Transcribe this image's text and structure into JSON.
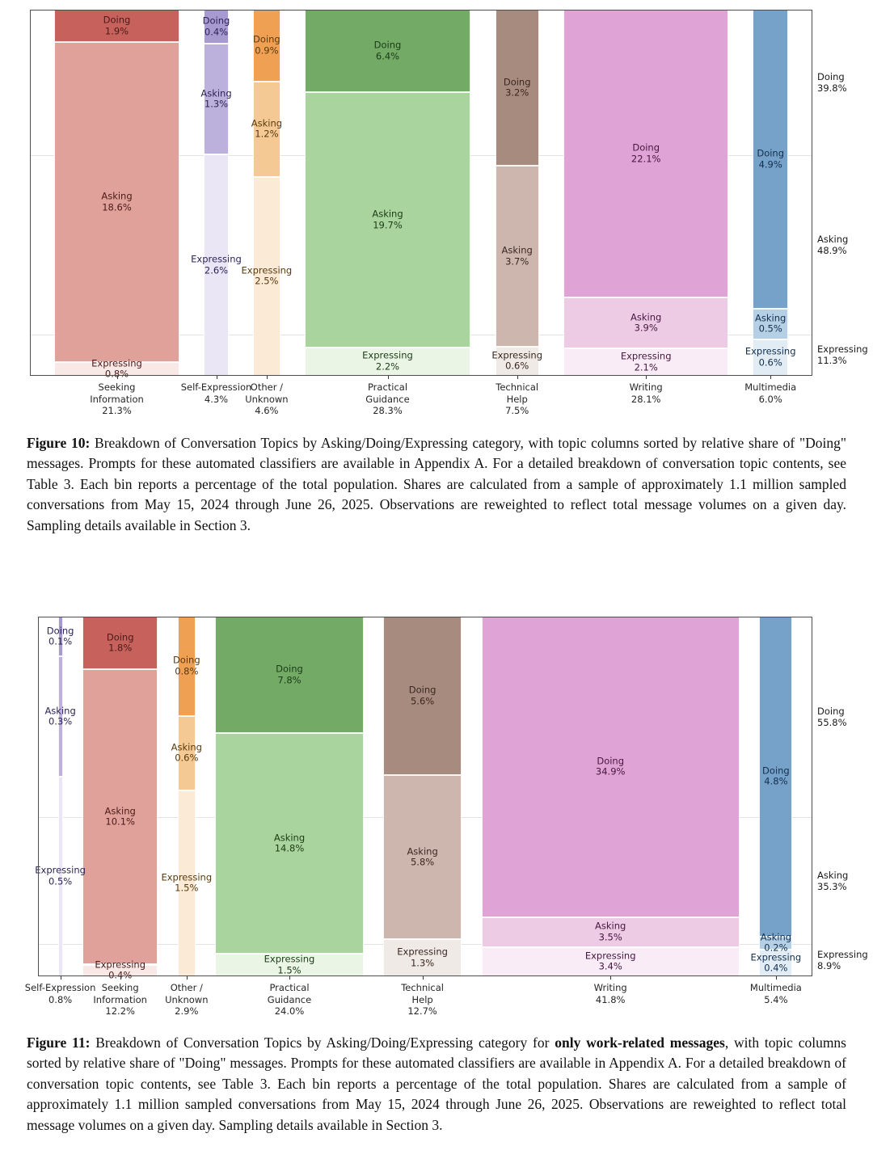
{
  "style": {
    "frame_color": "#4d4d4d",
    "grid_color": "#e3e3e3",
    "axis_text_color": "#262626",
    "right_label_color": "#1a1a1a",
    "background": "#ffffff"
  },
  "chart_data": [
    {
      "type": "mosaic",
      "title": "",
      "figure_label": "Figure 10:",
      "caption_parts": [
        {
          "bold": false,
          "text": " Breakdown of Conversation Topics by Asking/Doing/Expressing category, with topic columns sorted by relative share of \"Doing\" messages. Prompts for these automated classifiers are available in Appendix A. For a detailed breakdown of conversation topic contents, see Table 3. Each bin reports a percentage of the total population. Shares are calculated from a sample of approximately 1.1 million sampled conversations from May 15, 2024 through June 26, 2025. Observations are reweighted to reflect total message volumes on a given day. Sampling details available in Section 3."
        }
      ],
      "grid": "horizontal lines at overall category boundaries",
      "legend_position": "right-margin labels",
      "columns": [
        {
          "topic": "Seeking Information",
          "axis_label_lines": [
            "Seeking",
            "Information"
          ],
          "total_pct": 21.3,
          "colors": {
            "doing": "#c6615c",
            "asking": "#e1a19b",
            "expressing": "#f8e9e7",
            "label_text": "#4a1b18"
          },
          "segments": [
            {
              "category": "Doing",
              "pct": 1.9
            },
            {
              "category": "Asking",
              "pct": 18.6
            },
            {
              "category": "Expressing",
              "pct": 0.8
            }
          ]
        },
        {
          "topic": "Self-Expression",
          "axis_label_lines": [
            "Self-Expression"
          ],
          "total_pct": 4.3,
          "colors": {
            "doing": "#a79ad1",
            "asking": "#bcb1dc",
            "expressing": "#eae6f5",
            "label_text": "#2e2457"
          },
          "segments": [
            {
              "category": "Doing",
              "pct": 0.4
            },
            {
              "category": "Asking",
              "pct": 1.3
            },
            {
              "category": "Expressing",
              "pct": 2.6
            }
          ]
        },
        {
          "topic": "Other / Unknown",
          "axis_label_lines": [
            "Other /",
            "Unknown"
          ],
          "total_pct": 4.6,
          "colors": {
            "doing": "#efa052",
            "asking": "#f4c994",
            "expressing": "#fbead6",
            "label_text": "#5a3a0e"
          },
          "segments": [
            {
              "category": "Doing",
              "pct": 0.9
            },
            {
              "category": "Asking",
              "pct": 1.2
            },
            {
              "category": "Expressing",
              "pct": 2.5
            }
          ]
        },
        {
          "topic": "Practical Guidance",
          "axis_label_lines": [
            "Practical",
            "Guidance"
          ],
          "total_pct": 28.3,
          "colors": {
            "doing": "#73aa66",
            "asking": "#aad49d",
            "expressing": "#eaf5e5",
            "label_text": "#1c3c17"
          },
          "segments": [
            {
              "category": "Doing",
              "pct": 6.4
            },
            {
              "category": "Asking",
              "pct": 19.7
            },
            {
              "category": "Expressing",
              "pct": 2.2
            }
          ]
        },
        {
          "topic": "Technical Help",
          "axis_label_lines": [
            "Technical",
            "Help"
          ],
          "total_pct": 7.5,
          "colors": {
            "doing": "#a78b7f",
            "asking": "#cdb6ad",
            "expressing": "#f0eae7",
            "label_text": "#3a2820"
          },
          "segments": [
            {
              "category": "Doing",
              "pct": 3.2
            },
            {
              "category": "Asking",
              "pct": 3.7
            },
            {
              "category": "Expressing",
              "pct": 0.6
            }
          ]
        },
        {
          "topic": "Writing",
          "axis_label_lines": [
            "Writing"
          ],
          "total_pct": 28.1,
          "colors": {
            "doing": "#e0a3d5",
            "asking": "#edcbe5",
            "expressing": "#f9ecf6",
            "label_text": "#46173f"
          },
          "segments": [
            {
              "category": "Doing",
              "pct": 22.1
            },
            {
              "category": "Asking",
              "pct": 3.9
            },
            {
              "category": "Expressing",
              "pct": 2.1
            }
          ]
        },
        {
          "topic": "Multimedia",
          "axis_label_lines": [
            "Multimedia"
          ],
          "total_pct": 6.0,
          "colors": {
            "doing": "#76a1c8",
            "asking": "#b5cfe4",
            "expressing": "#e2ecf5",
            "label_text": "#13304e"
          },
          "segments": [
            {
              "category": "Doing",
              "pct": 4.9
            },
            {
              "category": "Asking",
              "pct": 0.5
            },
            {
              "category": "Expressing",
              "pct": 0.6
            }
          ]
        }
      ],
      "right_axis_labels": [
        {
          "category": "Doing",
          "pct": 39.8
        },
        {
          "category": "Asking",
          "pct": 48.9
        },
        {
          "category": "Expressing",
          "pct": 11.3
        }
      ]
    },
    {
      "type": "mosaic",
      "title": "",
      "figure_label": "Figure 11:",
      "caption_parts": [
        {
          "bold": false,
          "text": " Breakdown of Conversation Topics by Asking/Doing/Expressing category for "
        },
        {
          "bold": true,
          "text": "only work-related messages"
        },
        {
          "bold": false,
          "text": ", with topic columns sorted by relative share of \"Doing\" messages. Prompts for these automated classifiers are available in Appendix A. For a detailed breakdown of conversation topic contents, see Table 3. Each bin reports a percentage of the total population. Shares are calculated from a sample of approximately 1.1 million sampled conversations from May 15, 2024 through June 26, 2025. Observations are reweighted to reflect total message volumes on a given day. Sampling details available in Section 3."
        }
      ],
      "grid": "horizontal lines at overall category boundaries",
      "legend_position": "right-margin labels",
      "columns": [
        {
          "topic": "Self-Expression",
          "axis_label_lines": [
            "Self-Expression"
          ],
          "total_pct": 0.8,
          "colors": {
            "doing": "#a79ad1",
            "asking": "#bcb1dc",
            "expressing": "#eae6f5",
            "label_text": "#2e2457"
          },
          "segments": [
            {
              "category": "Doing",
              "pct": 0.1
            },
            {
              "category": "Asking",
              "pct": 0.3
            },
            {
              "category": "Expressing",
              "pct": 0.5
            }
          ]
        },
        {
          "topic": "Seeking Information",
          "axis_label_lines": [
            "Seeking",
            "Information"
          ],
          "total_pct": 12.2,
          "colors": {
            "doing": "#c6615c",
            "asking": "#e1a19b",
            "expressing": "#f8e9e7",
            "label_text": "#4a1b18"
          },
          "segments": [
            {
              "category": "Doing",
              "pct": 1.8
            },
            {
              "category": "Asking",
              "pct": 10.1
            },
            {
              "category": "Expressing",
              "pct": 0.4
            }
          ]
        },
        {
          "topic": "Other / Unknown",
          "axis_label_lines": [
            "Other /",
            "Unknown"
          ],
          "total_pct": 2.9,
          "colors": {
            "doing": "#efa052",
            "asking": "#f4c994",
            "expressing": "#fbead6",
            "label_text": "#5a3a0e"
          },
          "segments": [
            {
              "category": "Doing",
              "pct": 0.8
            },
            {
              "category": "Asking",
              "pct": 0.6
            },
            {
              "category": "Expressing",
              "pct": 1.5
            }
          ]
        },
        {
          "topic": "Practical Guidance",
          "axis_label_lines": [
            "Practical",
            "Guidance"
          ],
          "total_pct": 24.0,
          "colors": {
            "doing": "#73aa66",
            "asking": "#aad49d",
            "expressing": "#eaf5e5",
            "label_text": "#1c3c17"
          },
          "segments": [
            {
              "category": "Doing",
              "pct": 7.8
            },
            {
              "category": "Asking",
              "pct": 14.8
            },
            {
              "category": "Expressing",
              "pct": 1.5
            }
          ]
        },
        {
          "topic": "Technical Help",
          "axis_label_lines": [
            "Technical",
            "Help"
          ],
          "total_pct": 12.7,
          "colors": {
            "doing": "#a78b7f",
            "asking": "#cdb6ad",
            "expressing": "#f0eae7",
            "label_text": "#3a2820"
          },
          "segments": [
            {
              "category": "Doing",
              "pct": 5.6
            },
            {
              "category": "Asking",
              "pct": 5.8
            },
            {
              "category": "Expressing",
              "pct": 1.3
            }
          ]
        },
        {
          "topic": "Writing",
          "axis_label_lines": [
            "Writing"
          ],
          "total_pct": 41.8,
          "colors": {
            "doing": "#e0a3d5",
            "asking": "#edcbe5",
            "expressing": "#f9ecf6",
            "label_text": "#46173f"
          },
          "segments": [
            {
              "category": "Doing",
              "pct": 34.9
            },
            {
              "category": "Asking",
              "pct": 3.5
            },
            {
              "category": "Expressing",
              "pct": 3.4
            }
          ]
        },
        {
          "topic": "Multimedia",
          "axis_label_lines": [
            "Multimedia"
          ],
          "total_pct": 5.4,
          "colors": {
            "doing": "#76a1c8",
            "asking": "#b5cfe4",
            "expressing": "#e2ecf5",
            "label_text": "#13304e"
          },
          "segments": [
            {
              "category": "Doing",
              "pct": 4.8
            },
            {
              "category": "Asking",
              "pct": 0.2
            },
            {
              "category": "Expressing",
              "pct": 0.4
            }
          ]
        }
      ],
      "right_axis_labels": [
        {
          "category": "Doing",
          "pct": 55.8
        },
        {
          "category": "Asking",
          "pct": 35.3
        },
        {
          "category": "Expressing",
          "pct": 8.9
        }
      ]
    }
  ]
}
